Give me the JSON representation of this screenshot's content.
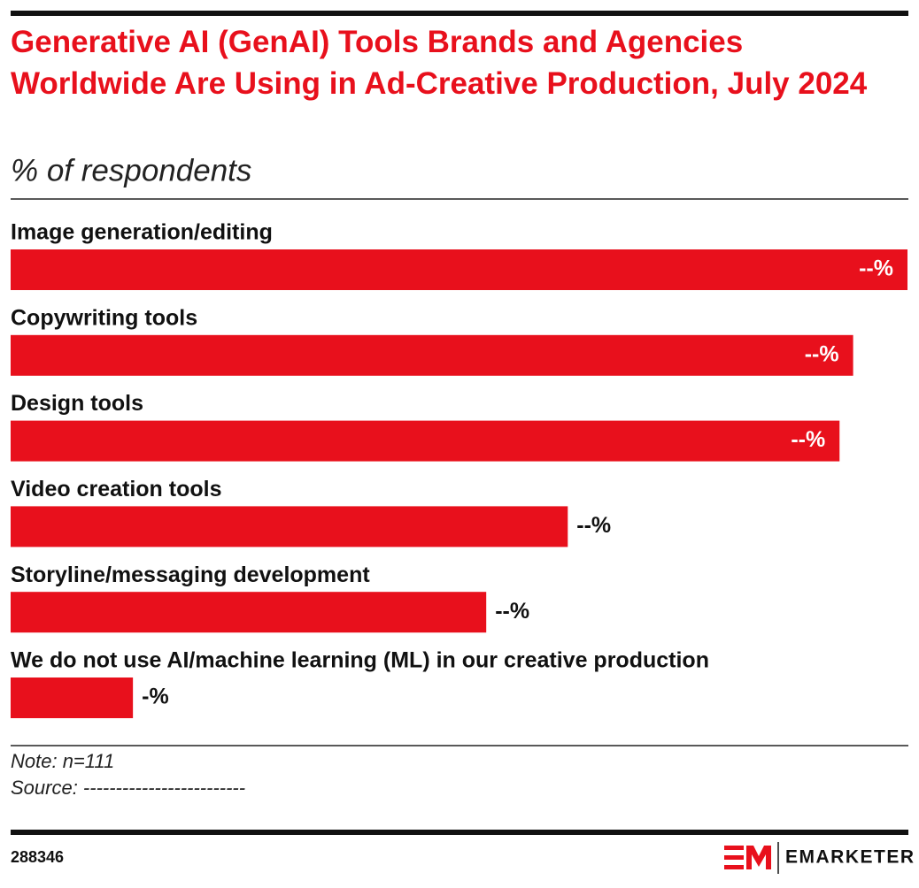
{
  "chart_data": {
    "type": "bar",
    "orientation": "horizontal",
    "title": "Generative AI (GenAI) Tools Brands and Agencies Worldwide Are Using in Ad-Creative Production, July 2024",
    "subtitle": "% of respondents",
    "categories": [
      "Image generation/editing",
      "Copywriting tools",
      "Design tools",
      "Video creation tools",
      "Storyline/messaging development",
      "We do not use AI/machine learning (ML) in our creative production"
    ],
    "values": [
      66,
      62,
      61,
      41,
      35,
      9
    ],
    "value_labels": [
      "--%",
      "--%",
      "--%",
      "--%",
      "--%",
      "-%"
    ],
    "color": "#e8101c",
    "note": "Note: n=111",
    "source": "Source: -------------------------",
    "chart_id": "288346",
    "brand": "EMARKETER"
  }
}
